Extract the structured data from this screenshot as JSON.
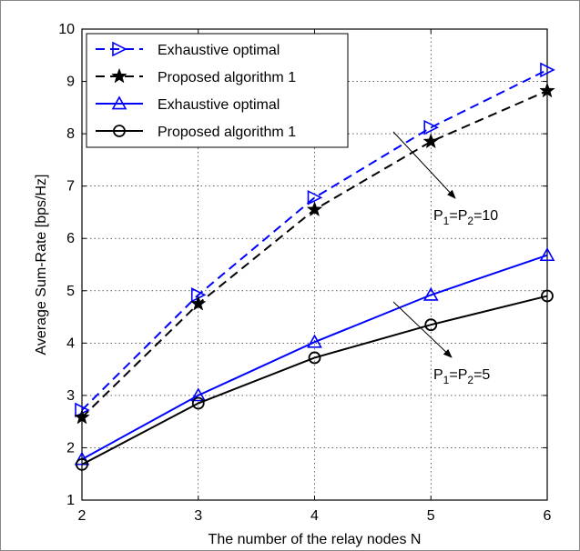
{
  "chart_data": {
    "type": "line",
    "xlabel": "The number of the relay nodes N",
    "ylabel": "Average Sum-Rate [bps/Hz]",
    "xlim": [
      2,
      6
    ],
    "ylim": [
      1,
      10
    ],
    "x_ticks": [
      2,
      3,
      4,
      5,
      6
    ],
    "y_ticks": [
      1,
      2,
      3,
      4,
      5,
      6,
      7,
      8,
      9,
      10
    ],
    "grid": true,
    "legend_position": "top-left",
    "x": [
      2,
      3,
      4,
      5,
      6
    ],
    "series": [
      {
        "name": "Exhaustive optimal",
        "values": [
          2.72,
          4.92,
          6.78,
          8.12,
          9.22
        ],
        "color": "#0000ff",
        "line": "dashed",
        "marker": "triangle-right"
      },
      {
        "name": "Proposed algorithm 1",
        "values": [
          2.58,
          4.75,
          6.55,
          7.85,
          8.82
        ],
        "color": "#000000",
        "line": "dashed",
        "marker": "star"
      },
      {
        "name": "Exhaustive optimal",
        "values": [
          1.78,
          3.0,
          4.02,
          4.92,
          5.68
        ],
        "color": "#0000ff",
        "line": "solid",
        "marker": "triangle-up"
      },
      {
        "name": "Proposed algorithm 1",
        "values": [
          1.68,
          2.85,
          3.72,
          4.35,
          4.9
        ],
        "color": "#000000",
        "line": "solid",
        "marker": "circle"
      }
    ],
    "annotations": [
      {
        "id": "p10",
        "parts": [
          "P",
          "1",
          "=P",
          "2",
          "=10"
        ]
      },
      {
        "id": "p5",
        "parts": [
          "P",
          "1",
          "=P",
          "2",
          "=5"
        ]
      }
    ]
  }
}
